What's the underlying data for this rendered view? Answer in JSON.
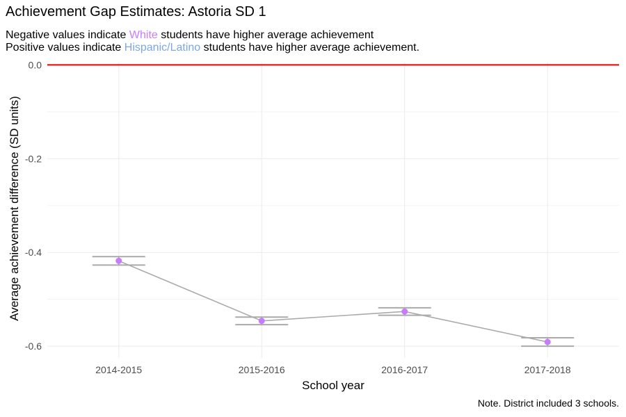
{
  "title": "Achievement Gap Estimates: Astoria SD 1",
  "subtitle": {
    "line1_pre": "Negative values indicate ",
    "line1_group": "White",
    "line1_post": " students have higher average achievement",
    "line2_pre": "Positive values indicate ",
    "line2_group": "Hispanic/Latino",
    "line2_post": " students have higher average achievement."
  },
  "caption": "Note. District included 3 schools.",
  "colors": {
    "white_group": "#c77cff",
    "hispanic_group": "#7da7e0",
    "reference_line": "#e00000",
    "line": "#aaaaaa",
    "errorbar": "#aaaaaa",
    "point": "#c77cff",
    "grid": "#ebebeb"
  },
  "chart_data": {
    "type": "line",
    "xlabel": "School year",
    "ylabel": "Average achievement difference (SD units)",
    "categories": [
      "2014-2015",
      "2015-2016",
      "2016-2017",
      "2017-2018"
    ],
    "values": [
      -0.418,
      -0.546,
      -0.526,
      -0.591
    ],
    "error_low": [
      -0.427,
      -0.554,
      -0.534,
      -0.6
    ],
    "error_high": [
      -0.409,
      -0.538,
      -0.518,
      -0.582
    ],
    "reference_line": 0.0,
    "ylim": [
      -0.625,
      0.005
    ],
    "yticks": [
      0.0,
      -0.2,
      -0.4,
      -0.6
    ],
    "ytick_labels": [
      "0.0",
      "-0.2",
      "-0.4",
      "-0.6"
    ],
    "grid": true,
    "legend": "none"
  }
}
